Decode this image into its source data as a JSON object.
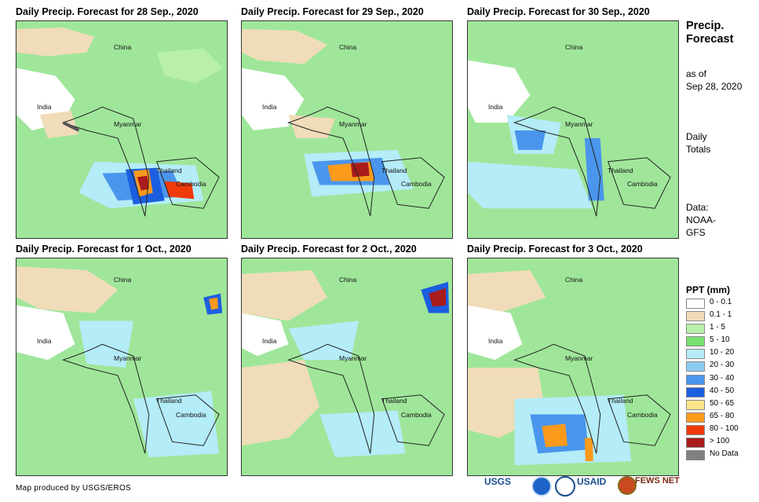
{
  "panels": [
    {
      "title": "Daily Precip. Forecast for 28 Sep., 2020"
    },
    {
      "title": "Daily Precip. Forecast for 29 Sep., 2020"
    },
    {
      "title": "Daily Precip. Forecast for 30 Sep., 2020"
    },
    {
      "title": "Daily Precip. Forecast for 1 Oct., 2020"
    },
    {
      "title": "Daily Precip. Forecast for 2 Oct., 2020"
    },
    {
      "title": "Daily Precip. Forecast for 3 Oct., 2020"
    }
  ],
  "places": {
    "china": "China",
    "india": "India",
    "myanmar": "Myanmar",
    "thailand": "Thailand",
    "cambodia": "Cambodia"
  },
  "sidebar": {
    "title_line1": "Precip.",
    "title_line2": "Forecast",
    "asof_line1": "as of",
    "asof_line2": "Sep 28, 2020",
    "daily_line1": "Daily",
    "daily_line2": "Totals",
    "data_line1": "Data:",
    "data_line2": "NOAA-",
    "data_line3": "GFS"
  },
  "legend": {
    "title": "PPT (mm)",
    "items": [
      {
        "label": "0 - 0.1",
        "color": "#ffffff"
      },
      {
        "label": "0.1 - 1",
        "color": "#f0dcb8"
      },
      {
        "label": "1 - 5",
        "color": "#b8f0a8"
      },
      {
        "label": "5 - 10",
        "color": "#78e070"
      },
      {
        "label": "10 - 20",
        "color": "#b4ecf8"
      },
      {
        "label": "20 - 30",
        "color": "#8cccf4"
      },
      {
        "label": "30 - 40",
        "color": "#4a96ec"
      },
      {
        "label": "40 - 50",
        "color": "#1c5ee0"
      },
      {
        "label": "50 - 65",
        "color": "#fce68c"
      },
      {
        "label": "65 - 80",
        "color": "#fc9a1c"
      },
      {
        "label": "80 - 100",
        "color": "#f03a0c"
      },
      {
        "label": "> 100",
        "color": "#a81c1c"
      },
      {
        "label": "No Data",
        "color": "#808080"
      }
    ]
  },
  "footer": {
    "credit": "Map produced by USGS/EROS",
    "logos": {
      "usgs": "USGS",
      "usaid": "USAID",
      "fewsnet": "FEWS NET"
    }
  }
}
